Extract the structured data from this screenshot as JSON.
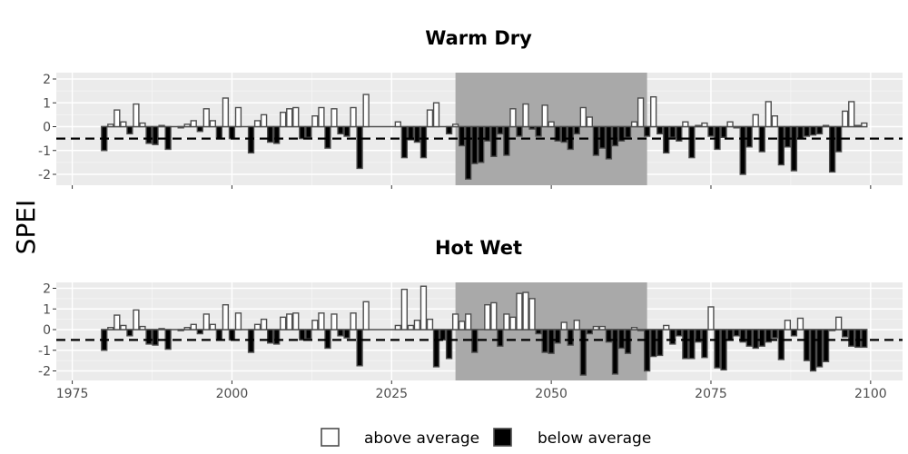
{
  "chart_data": {
    "type": "bar",
    "y_axis_title": "SPEI",
    "x_range": [
      1972.5,
      2105
    ],
    "x_ticks": [
      "1975",
      "2000",
      "2025",
      "2050",
      "2075",
      "2100"
    ],
    "x_tick_values": [
      1975,
      2000,
      2025,
      2050,
      2075,
      2100
    ],
    "threshold": -0.5,
    "threshold_style": "dashed",
    "shaded_period": [
      2035,
      2065
    ],
    "colors": {
      "above": "#ffffff",
      "below": "#000000",
      "outline": "#4d4d4d",
      "shade": "#a9a9a9",
      "panel_bg": "#ebebeb"
    },
    "legend": {
      "position": "bottom",
      "above_label": "above average",
      "below_label": "below average"
    },
    "panels": [
      {
        "title": "Warm Dry",
        "ylim": [
          -2.4,
          2.3
        ],
        "y_ticks": [
          "2",
          "1",
          "0",
          "-1",
          "-2"
        ],
        "y_tick_values": [
          2,
          1,
          0,
          -1,
          -2
        ],
        "years": [
          1980,
          1981,
          1982,
          1983,
          1984,
          1985,
          1986,
          1987,
          1988,
          1989,
          1990,
          1991,
          1992,
          1993,
          1994,
          1995,
          1996,
          1997,
          1998,
          1999,
          2000,
          2001,
          2002,
          2003,
          2004,
          2005,
          2006,
          2007,
          2008,
          2009,
          2010,
          2011,
          2012,
          2013,
          2014,
          2015,
          2016,
          2017,
          2018,
          2019,
          2020,
          2021,
          2022,
          2023,
          2024,
          2025,
          2026,
          2027,
          2028,
          2029,
          2030,
          2031,
          2032,
          2033,
          2034,
          2035,
          2036,
          2037,
          2038,
          2039,
          2040,
          2041,
          2042,
          2043,
          2044,
          2045,
          2046,
          2047,
          2048,
          2049,
          2050,
          2051,
          2052,
          2053,
          2054,
          2055,
          2056,
          2057,
          2058,
          2059,
          2060,
          2061,
          2062,
          2063,
          2064,
          2065,
          2066,
          2067,
          2068,
          2069,
          2070,
          2071,
          2072,
          2073,
          2074,
          2075,
          2076,
          2077,
          2078,
          2079,
          2080,
          2081,
          2082,
          2083,
          2084,
          2085,
          2086,
          2087,
          2088,
          2089,
          2090,
          2091,
          2092,
          2093,
          2094,
          2095,
          2096,
          2097,
          2098,
          2099
        ],
        "values": [
          -1.0,
          0.1,
          0.7,
          0.2,
          -0.3,
          0.95,
          0.15,
          -0.7,
          -0.75,
          0.05,
          -0.95,
          0.0,
          -0.05,
          0.1,
          0.25,
          -0.2,
          0.75,
          0.25,
          -0.5,
          1.2,
          -0.5,
          0.8,
          0.0,
          -1.1,
          0.25,
          0.5,
          -0.65,
          -0.7,
          0.6,
          0.75,
          0.8,
          -0.5,
          -0.45,
          0.45,
          0.8,
          -0.9,
          0.75,
          -0.3,
          -0.4,
          0.8,
          -1.75,
          1.35,
          0.0,
          0.0,
          0.0,
          0.0,
          0.2,
          -1.3,
          -0.55,
          -0.65,
          -1.3,
          0.7,
          1.0,
          0.0,
          -0.3,
          0.1,
          -0.8,
          -2.2,
          -1.55,
          -1.5,
          -0.6,
          -1.25,
          -0.3,
          -1.2,
          0.75,
          -0.4,
          0.95,
          -0.1,
          -0.4,
          0.9,
          0.2,
          -0.6,
          -0.65,
          -0.95,
          -0.3,
          0.8,
          0.4,
          -1.2,
          -0.9,
          -1.35,
          -0.8,
          -0.6,
          -0.45,
          0.2,
          1.2,
          -0.4,
          1.25,
          -0.3,
          -1.1,
          -0.45,
          -0.6,
          0.2,
          -1.3,
          0.05,
          0.15,
          -0.4,
          -0.95,
          -0.45,
          0.2,
          -0.05,
          -2.0,
          -0.85,
          0.5,
          -1.05,
          1.05,
          0.45,
          -1.6,
          -0.85,
          -1.85,
          -0.5,
          -0.4,
          -0.35,
          -0.3,
          0.05,
          -1.9,
          -1.05,
          0.65,
          1.05,
          0.05,
          0.15
        ]
      },
      {
        "title": "Hot Wet",
        "ylim": [
          -2.4,
          2.3
        ],
        "y_ticks": [
          "2",
          "1",
          "0",
          "-1",
          "-2"
        ],
        "y_tick_values": [
          2,
          1,
          0,
          -1,
          -2
        ],
        "years": [
          1980,
          1981,
          1982,
          1983,
          1984,
          1985,
          1986,
          1987,
          1988,
          1989,
          1990,
          1991,
          1992,
          1993,
          1994,
          1995,
          1996,
          1997,
          1998,
          1999,
          2000,
          2001,
          2002,
          2003,
          2004,
          2005,
          2006,
          2007,
          2008,
          2009,
          2010,
          2011,
          2012,
          2013,
          2014,
          2015,
          2016,
          2017,
          2018,
          2019,
          2020,
          2021,
          2022,
          2023,
          2024,
          2025,
          2026,
          2027,
          2028,
          2029,
          2030,
          2031,
          2032,
          2033,
          2034,
          2035,
          2036,
          2037,
          2038,
          2039,
          2040,
          2041,
          2042,
          2043,
          2044,
          2045,
          2046,
          2047,
          2048,
          2049,
          2050,
          2051,
          2052,
          2053,
          2054,
          2055,
          2056,
          2057,
          2058,
          2059,
          2060,
          2061,
          2062,
          2063,
          2064,
          2065,
          2066,
          2067,
          2068,
          2069,
          2070,
          2071,
          2072,
          2073,
          2074,
          2075,
          2076,
          2077,
          2078,
          2079,
          2080,
          2081,
          2082,
          2083,
          2084,
          2085,
          2086,
          2087,
          2088,
          2089,
          2090,
          2091,
          2092,
          2093,
          2094,
          2095,
          2096,
          2097,
          2098,
          2099
        ],
        "values": [
          -1.0,
          0.1,
          0.7,
          0.2,
          -0.3,
          0.95,
          0.15,
          -0.7,
          -0.75,
          0.05,
          -0.95,
          0.0,
          -0.05,
          0.1,
          0.25,
          -0.2,
          0.75,
          0.25,
          -0.5,
          1.2,
          -0.5,
          0.8,
          0.0,
          -1.1,
          0.25,
          0.5,
          -0.65,
          -0.7,
          0.6,
          0.75,
          0.8,
          -0.5,
          -0.45,
          0.45,
          0.8,
          -0.9,
          0.75,
          -0.3,
          -0.4,
          0.8,
          -1.75,
          1.35,
          0.0,
          0.0,
          0.0,
          0.0,
          0.2,
          1.95,
          0.2,
          0.45,
          2.1,
          0.5,
          -1.8,
          -0.5,
          -1.4,
          0.75,
          0.4,
          0.75,
          -1.1,
          0.0,
          1.2,
          1.3,
          -0.8,
          0.75,
          0.6,
          1.75,
          1.8,
          1.5,
          -0.2,
          -1.1,
          -1.15,
          -0.65,
          0.35,
          -0.75,
          0.45,
          -2.2,
          -0.2,
          0.15,
          0.15,
          -0.6,
          -2.15,
          -0.9,
          -1.15,
          0.1,
          -0.05,
          -2.0,
          -1.3,
          -1.25,
          0.2,
          -0.7,
          -0.3,
          -1.4,
          -1.4,
          -0.6,
          -1.35,
          1.1,
          -1.85,
          -1.95,
          -0.5,
          -0.3,
          -0.6,
          -0.8,
          -0.9,
          -0.8,
          -0.6,
          -0.4,
          -1.45,
          0.45,
          -0.3,
          0.55,
          -1.5,
          -2.0,
          -1.8,
          -1.55,
          -0.05,
          0.6,
          -0.35,
          -0.8,
          -0.85,
          -0.85
        ]
      }
    ]
  }
}
